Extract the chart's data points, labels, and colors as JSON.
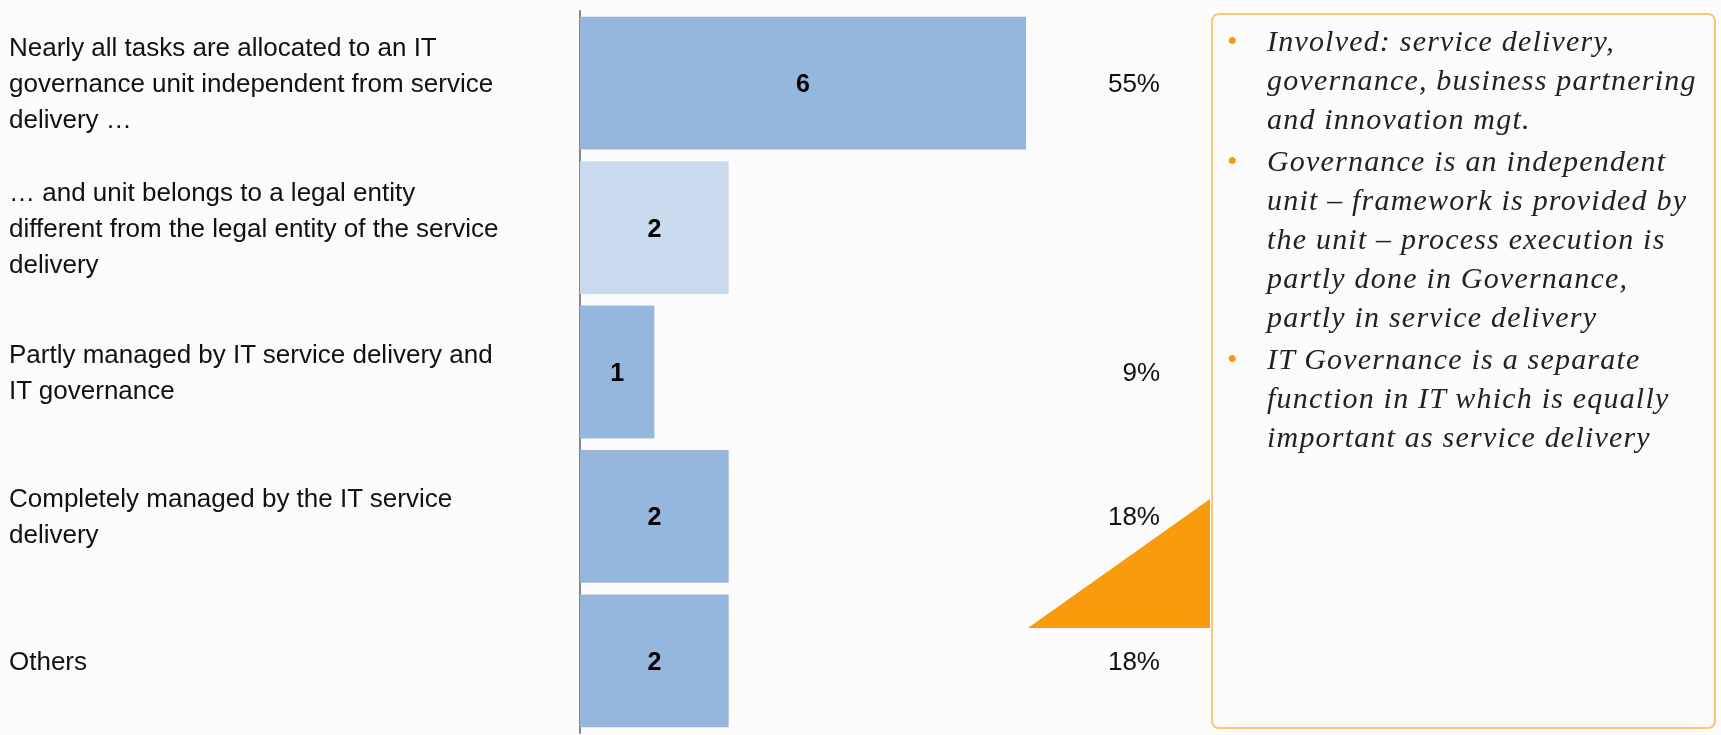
{
  "chart_data": {
    "type": "bar",
    "orientation": "horizontal",
    "categories": [
      "Nearly all tasks are allocated to an IT governance unit independent from service delivery …",
      "… and unit belongs to a legal entity different from the legal entity of the service delivery",
      "Partly managed by IT service delivery and IT governance",
      "Completely managed by the IT service delivery",
      "Others"
    ],
    "values": [
      6,
      2,
      1,
      2,
      2
    ],
    "colors": [
      "#95b7dd",
      "#c9daef",
      "#95b7dd",
      "#95b7dd",
      "#95b7dd"
    ],
    "tick_labels": "y",
    "data_labels": true,
    "annotations": [
      "55%",
      "9%",
      "18%",
      "18%",
      "• Involved: service delivery, governance, business partnering and innovation mgt.",
      "• Governance is an independent unit – framework is provided by the unit – process execution is partly done in Governance, partly in service delivery",
      "• IT Governance is a separate function in IT which is equally important as service delivery"
    ]
  }
}
